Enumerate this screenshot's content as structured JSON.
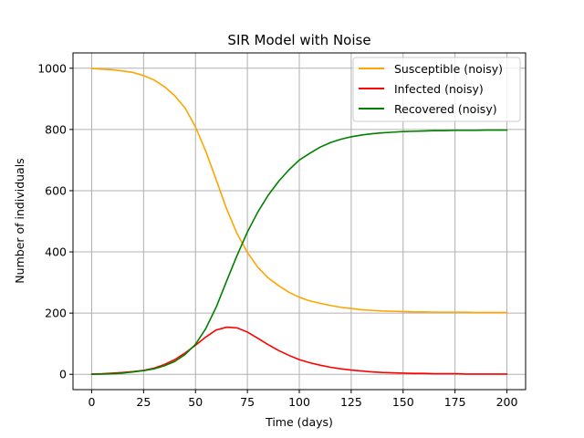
{
  "chart_data": {
    "type": "line",
    "title": "SIR Model with Noise",
    "xlabel": "Time (days)",
    "ylabel": "Number of individuals",
    "xlim": [
      -9,
      209
    ],
    "ylim": [
      -50,
      1050
    ],
    "xticks": [
      0,
      25,
      50,
      75,
      100,
      125,
      150,
      175,
      200
    ],
    "yticks": [
      0,
      200,
      400,
      600,
      800,
      1000
    ],
    "grid": true,
    "legend_position": "top-right",
    "series": [
      {
        "name": "Susceptible (noisy)",
        "color": "#ffa500",
        "x": [
          0,
          5,
          10,
          15,
          20,
          25,
          30,
          35,
          40,
          45,
          50,
          55,
          60,
          65,
          70,
          75,
          80,
          85,
          90,
          95,
          100,
          105,
          110,
          115,
          120,
          125,
          130,
          135,
          140,
          145,
          150,
          155,
          160,
          165,
          170,
          175,
          180,
          185,
          190,
          195,
          200
        ],
        "y": [
          999,
          997,
          995,
          991,
          986,
          976,
          962,
          940,
          910,
          870,
          808,
          728,
          635,
          540,
          460,
          398,
          350,
          315,
          290,
          268,
          252,
          240,
          232,
          225,
          219,
          215,
          211,
          209,
          207,
          206,
          205,
          204,
          204,
          203,
          203,
          203,
          203,
          202,
          202,
          202,
          202
        ]
      },
      {
        "name": "Infected (noisy)",
        "color": "#ff0000",
        "x": [
          0,
          5,
          10,
          15,
          20,
          25,
          30,
          35,
          40,
          45,
          50,
          55,
          60,
          65,
          70,
          75,
          80,
          85,
          90,
          95,
          100,
          105,
          110,
          115,
          120,
          125,
          130,
          135,
          140,
          145,
          150,
          155,
          160,
          165,
          170,
          175,
          180,
          185,
          190,
          195,
          200
        ],
        "y": [
          1,
          2,
          4,
          6,
          9,
          13,
          20,
          32,
          48,
          70,
          95,
          122,
          145,
          154,
          152,
          138,
          118,
          97,
          78,
          62,
          48,
          38,
          30,
          23,
          18,
          14,
          11,
          8,
          6,
          5,
          4,
          3,
          3,
          2,
          2,
          2,
          1,
          1,
          1,
          1,
          1
        ]
      },
      {
        "name": "Recovered (noisy)",
        "color": "#008000",
        "x": [
          0,
          5,
          10,
          15,
          20,
          25,
          30,
          35,
          40,
          45,
          50,
          55,
          60,
          65,
          70,
          75,
          80,
          85,
          90,
          95,
          100,
          105,
          110,
          115,
          120,
          125,
          130,
          135,
          140,
          145,
          150,
          155,
          160,
          165,
          170,
          175,
          180,
          185,
          190,
          195,
          200
        ],
        "y": [
          0,
          1,
          2,
          4,
          8,
          12,
          18,
          28,
          42,
          65,
          98,
          150,
          220,
          305,
          388,
          465,
          530,
          585,
          630,
          668,
          700,
          722,
          742,
          757,
          768,
          776,
          782,
          786,
          789,
          791,
          793,
          794,
          795,
          796,
          796,
          797,
          797,
          797,
          798,
          798,
          798
        ]
      }
    ]
  }
}
